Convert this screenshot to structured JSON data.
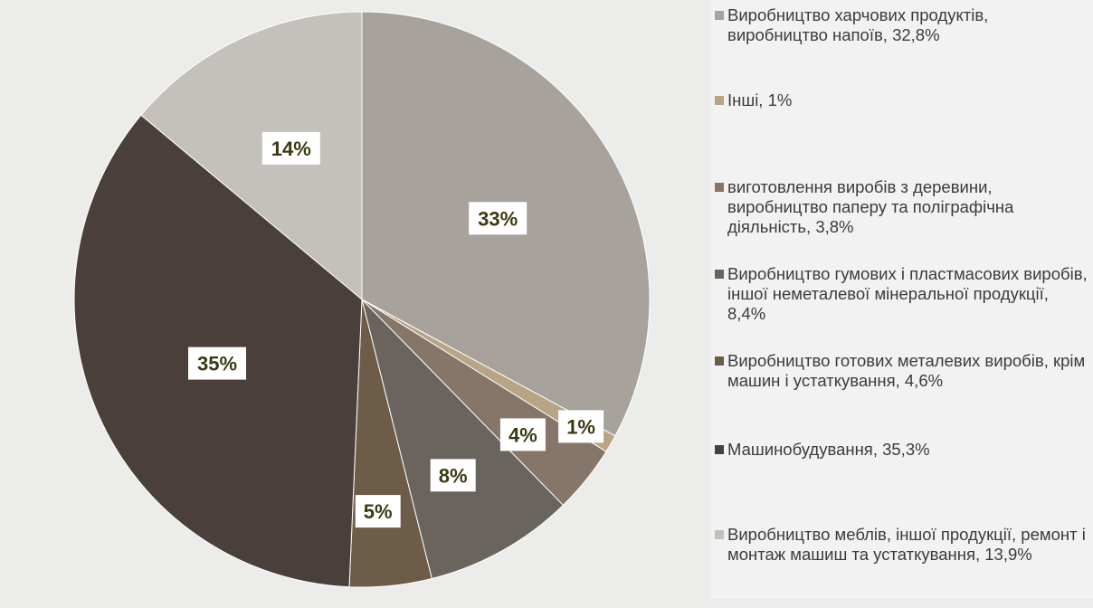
{
  "chart_data": {
    "type": "pie",
    "start": "12 o'clock",
    "direction": "clockwise",
    "legend_position": "right",
    "slices": [
      {
        "label": "Виробництво харчових продуктів, виробництво напоїв, 32,8%",
        "value": 32.8,
        "data_label": "33%",
        "color": "#a8a29c"
      },
      {
        "label": "Інші, 1%",
        "value": 1.0,
        "data_label": "1%",
        "color": "#b8a585"
      },
      {
        "label": "виготовлення виробів з деревини, виробництво паперу та поліграфічна діяльність, 3,8%",
        "value": 3.8,
        "data_label": "4%",
        "color": "#857669"
      },
      {
        "label": "Виробництво гумових і пластмасових виробів, іншої неметалевої мінеральної продукції, 8,4%",
        "value": 8.4,
        "data_label": "8%",
        "color": "#69645e"
      },
      {
        "label": "Виробництво готових металевих виробів, крім машин і устаткування, 4,6%",
        "value": 4.6,
        "data_label": "5%",
        "color": "#6d5c48"
      },
      {
        "label": "Машинобудування, 35,3%",
        "value": 35.3,
        "data_label": "35%",
        "color": "#4a3f3b"
      },
      {
        "label": "Виробництво меблів, іншої продукції, ремонт і монтаж машиш та устаткування, 13,9%",
        "value": 13.9,
        "data_label": "14%",
        "color": "#c4c0bb"
      }
    ]
  }
}
